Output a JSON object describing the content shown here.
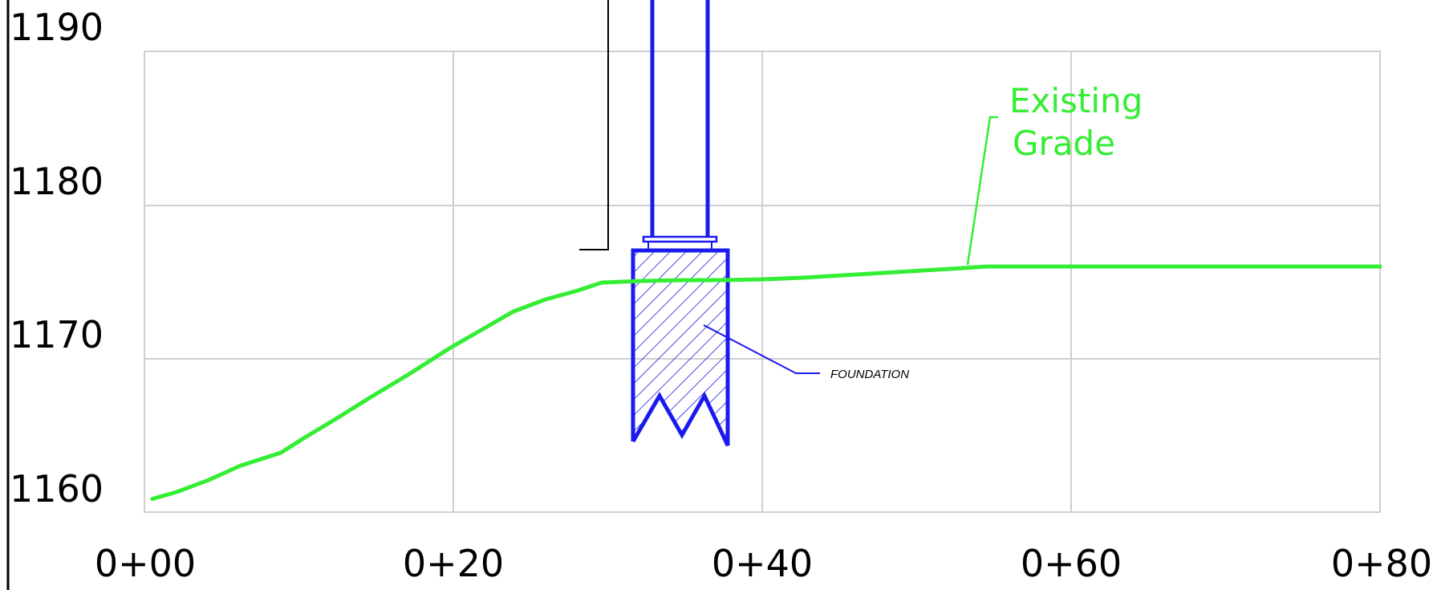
{
  "y_labels": [
    "1190",
    "1180",
    "1170",
    "1160"
  ],
  "x_labels": [
    "0+00",
    "0+20",
    "0+40",
    "0+60",
    "0+80"
  ],
  "labels": {
    "existing_grade_line1": "Existing",
    "existing_grade_line2": "Grade",
    "foundation": "FOUNDATION"
  },
  "colors": {
    "grade": "#33ee33",
    "structure": "#1a1aee",
    "grid": "#cfcfcf",
    "text": "#000000"
  },
  "grid": true,
  "axis_ranges": {
    "station": [
      0,
      80
    ],
    "elevation": [
      1160,
      1190
    ]
  }
}
